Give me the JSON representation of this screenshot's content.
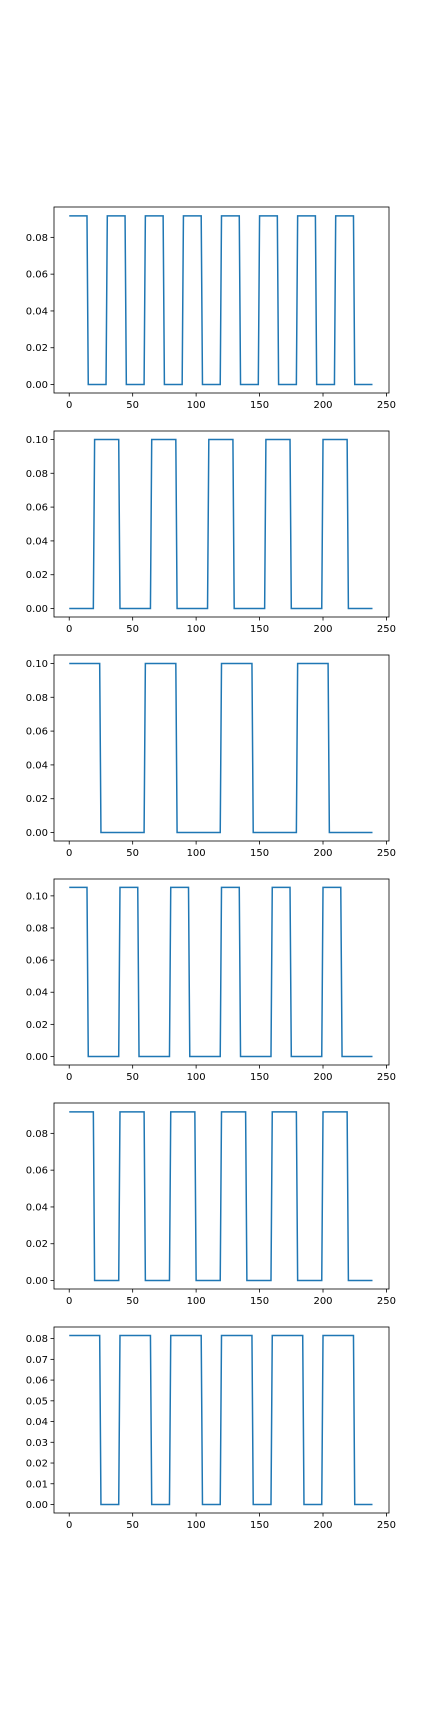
{
  "figure": {
    "background": "#ffffff"
  },
  "chart_data": [
    {
      "type": "line",
      "xlim": [
        -12,
        252
      ],
      "ylim": [
        -0.0046,
        0.0965
      ],
      "xticks": [
        0,
        50,
        100,
        150,
        200,
        250
      ],
      "xtick_labels": [
        "0",
        "50",
        "100",
        "150",
        "200",
        "250"
      ],
      "yticks": [
        0.0,
        0.02,
        0.04,
        0.06,
        0.08
      ],
      "ytick_labels": [
        "0.00",
        "0.02",
        "0.04",
        "0.06",
        "0.08"
      ],
      "grid": false,
      "series": [
        {
          "color": "#1f77b4",
          "points": [
            [
              0,
              0.0917
            ],
            [
              14,
              0.0917
            ],
            [
              15,
              0
            ],
            [
              29,
              0
            ],
            [
              30,
              0.0917
            ],
            [
              44,
              0.0917
            ],
            [
              45,
              0
            ],
            [
              59,
              0
            ],
            [
              60,
              0.0917
            ],
            [
              74,
              0.0917
            ],
            [
              75,
              0
            ],
            [
              89,
              0
            ],
            [
              90,
              0.0917
            ],
            [
              104,
              0.0917
            ],
            [
              105,
              0
            ],
            [
              119,
              0
            ],
            [
              120,
              0.0917
            ],
            [
              134,
              0.0917
            ],
            [
              135,
              0
            ],
            [
              149,
              0
            ],
            [
              150,
              0.0917
            ],
            [
              164,
              0.0917
            ],
            [
              165,
              0
            ],
            [
              179,
              0
            ],
            [
              180,
              0.0917
            ],
            [
              194,
              0.0917
            ],
            [
              195,
              0
            ],
            [
              209,
              0
            ],
            [
              210,
              0.0917
            ],
            [
              224,
              0.0917
            ],
            [
              225,
              0
            ],
            [
              239,
              0
            ]
          ]
        }
      ]
    },
    {
      "type": "line",
      "xlim": [
        -12,
        252
      ],
      "ylim": [
        -0.005,
        0.105
      ],
      "xticks": [
        0,
        50,
        100,
        150,
        200,
        250
      ],
      "xtick_labels": [
        "0",
        "50",
        "100",
        "150",
        "200",
        "250"
      ],
      "yticks": [
        0.0,
        0.02,
        0.04,
        0.06,
        0.08,
        0.1
      ],
      "ytick_labels": [
        "0.00",
        "0.02",
        "0.04",
        "0.06",
        "0.08",
        "0.10"
      ],
      "grid": false,
      "series": [
        {
          "color": "#1f77b4",
          "points": [
            [
              0,
              0
            ],
            [
              19,
              0
            ],
            [
              20,
              0.1
            ],
            [
              39,
              0.1
            ],
            [
              40,
              0
            ],
            [
              64,
              0
            ],
            [
              65,
              0.1
            ],
            [
              84,
              0.1
            ],
            [
              85,
              0
            ],
            [
              109,
              0
            ],
            [
              110,
              0.1
            ],
            [
              129,
              0.1
            ],
            [
              130,
              0
            ],
            [
              154,
              0
            ],
            [
              155,
              0.1
            ],
            [
              174,
              0.1
            ],
            [
              175,
              0
            ],
            [
              199,
              0
            ],
            [
              200,
              0.1
            ],
            [
              219,
              0.1
            ],
            [
              220,
              0
            ],
            [
              239,
              0
            ]
          ]
        }
      ]
    },
    {
      "type": "line",
      "xlim": [
        -12,
        252
      ],
      "ylim": [
        -0.005,
        0.105
      ],
      "xticks": [
        0,
        50,
        100,
        150,
        200,
        250
      ],
      "xtick_labels": [
        "0",
        "50",
        "100",
        "150",
        "200",
        "250"
      ],
      "yticks": [
        0.0,
        0.02,
        0.04,
        0.06,
        0.08,
        0.1
      ],
      "ytick_labels": [
        "0.00",
        "0.02",
        "0.04",
        "0.06",
        "0.08",
        "0.10"
      ],
      "grid": false,
      "series": [
        {
          "color": "#1f77b4",
          "points": [
            [
              0,
              0.1
            ],
            [
              24,
              0.1
            ],
            [
              25,
              0
            ],
            [
              59,
              0
            ],
            [
              60,
              0.1
            ],
            [
              84,
              0.1
            ],
            [
              85,
              0
            ],
            [
              119,
              0
            ],
            [
              120,
              0.1
            ],
            [
              144,
              0.1
            ],
            [
              145,
              0
            ],
            [
              179,
              0
            ],
            [
              180,
              0.1
            ],
            [
              204,
              0.1
            ],
            [
              205,
              0
            ],
            [
              239,
              0
            ]
          ]
        }
      ]
    },
    {
      "type": "line",
      "xlim": [
        -12,
        252
      ],
      "ylim": [
        -0.0053,
        0.1105
      ],
      "xticks": [
        0,
        50,
        100,
        150,
        200,
        250
      ],
      "xtick_labels": [
        "0",
        "50",
        "100",
        "150",
        "200",
        "250"
      ],
      "yticks": [
        0.0,
        0.02,
        0.04,
        0.06,
        0.08,
        0.1
      ],
      "ytick_labels": [
        "0.00",
        "0.02",
        "0.04",
        "0.06",
        "0.08",
        "0.10"
      ],
      "grid": false,
      "series": [
        {
          "color": "#1f77b4",
          "points": [
            [
              0,
              0.1053
            ],
            [
              14,
              0.1053
            ],
            [
              15,
              0
            ],
            [
              39,
              0
            ],
            [
              40,
              0.1053
            ],
            [
              54,
              0.1053
            ],
            [
              55,
              0
            ],
            [
              79,
              0
            ],
            [
              80,
              0.1053
            ],
            [
              94,
              0.1053
            ],
            [
              95,
              0
            ],
            [
              119,
              0
            ],
            [
              120,
              0.1053
            ],
            [
              134,
              0.1053
            ],
            [
              135,
              0
            ],
            [
              159,
              0
            ],
            [
              160,
              0.1053
            ],
            [
              174,
              0.1053
            ],
            [
              175,
              0
            ],
            [
              199,
              0
            ],
            [
              200,
              0.1053
            ],
            [
              214,
              0.1053
            ],
            [
              215,
              0
            ],
            [
              239,
              0
            ]
          ]
        }
      ]
    },
    {
      "type": "line",
      "xlim": [
        -12,
        252
      ],
      "ylim": [
        -0.0046,
        0.0965
      ],
      "xticks": [
        0,
        50,
        100,
        150,
        200,
        250
      ],
      "xtick_labels": [
        "0",
        "50",
        "100",
        "150",
        "200",
        "250"
      ],
      "yticks": [
        0.0,
        0.02,
        0.04,
        0.06,
        0.08
      ],
      "ytick_labels": [
        "0.00",
        "0.02",
        "0.04",
        "0.06",
        "0.08"
      ],
      "grid": false,
      "series": [
        {
          "color": "#1f77b4",
          "points": [
            [
              0,
              0.0917
            ],
            [
              19,
              0.0917
            ],
            [
              20,
              0
            ],
            [
              39,
              0
            ],
            [
              40,
              0.0917
            ],
            [
              59,
              0.0917
            ],
            [
              60,
              0
            ],
            [
              79,
              0
            ],
            [
              80,
              0.0917
            ],
            [
              99,
              0.0917
            ],
            [
              100,
              0
            ],
            [
              119,
              0
            ],
            [
              120,
              0.0917
            ],
            [
              139,
              0.0917
            ],
            [
              140,
              0
            ],
            [
              159,
              0
            ],
            [
              160,
              0.0917
            ],
            [
              179,
              0.0917
            ],
            [
              180,
              0
            ],
            [
              199,
              0
            ],
            [
              200,
              0.0917
            ],
            [
              219,
              0.0917
            ],
            [
              220,
              0
            ],
            [
              239,
              0
            ]
          ]
        }
      ]
    },
    {
      "type": "line",
      "xlim": [
        -12,
        252
      ],
      "ylim": [
        -0.0041,
        0.0856
      ],
      "xticks": [
        0,
        50,
        100,
        150,
        200,
        250
      ],
      "xtick_labels": [
        "0",
        "50",
        "100",
        "150",
        "200",
        "250"
      ],
      "yticks": [
        0.0,
        0.01,
        0.02,
        0.03,
        0.04,
        0.05,
        0.06,
        0.07,
        0.08
      ],
      "ytick_labels": [
        "0.00",
        "0.01",
        "0.02",
        "0.03",
        "0.04",
        "0.05",
        "0.06",
        "0.07",
        "0.08"
      ],
      "grid": false,
      "series": [
        {
          "color": "#1f77b4",
          "points": [
            [
              0,
              0.0815
            ],
            [
              24,
              0.0815
            ],
            [
              25,
              0
            ],
            [
              39,
              0
            ],
            [
              40,
              0.0815
            ],
            [
              64,
              0.0815
            ],
            [
              65,
              0
            ],
            [
              79,
              0
            ],
            [
              80,
              0.0815
            ],
            [
              104,
              0.0815
            ],
            [
              105,
              0
            ],
            [
              119,
              0
            ],
            [
              120,
              0.0815
            ],
            [
              144,
              0.0815
            ],
            [
              145,
              0
            ],
            [
              159,
              0
            ],
            [
              160,
              0.0815
            ],
            [
              184,
              0.0815
            ],
            [
              185,
              0
            ],
            [
              199,
              0
            ],
            [
              200,
              0.0815
            ],
            [
              224,
              0.0815
            ],
            [
              225,
              0
            ],
            [
              239,
              0
            ]
          ]
        }
      ]
    }
  ]
}
